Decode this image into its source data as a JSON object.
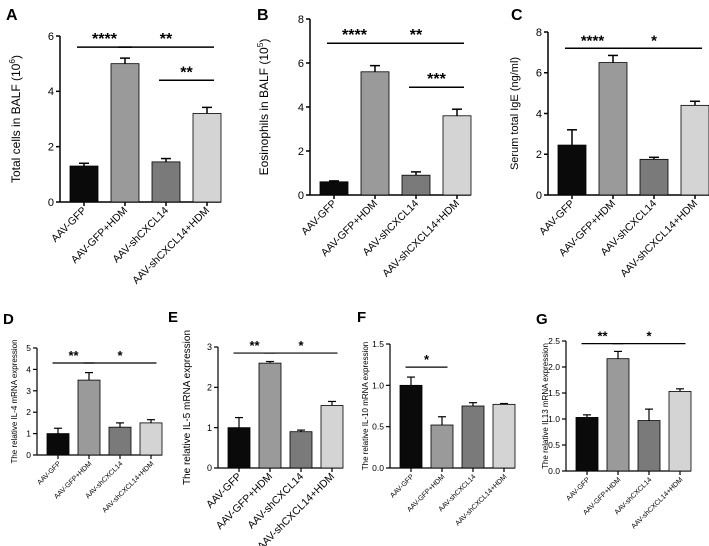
{
  "figure": {
    "categories": [
      "AAV-GFP",
      "AAV-GFP+HDM",
      "AAV-shCXCL14",
      "AAV-shCXCL14+HDM"
    ],
    "colors": {
      "axis": "#000000",
      "error": "#000000",
      "bar_fill": [
        "#0a0a0a",
        "#9a9a9a",
        "#7a7a7a",
        "#d4d4d4"
      ]
    }
  },
  "chart_data": [
    {
      "type": "bar",
      "panel": "A",
      "ylabel": "Total cells in BALF (10",
      "ylabel_sup": "6",
      "ylabel_end": ")",
      "ylim": [
        0,
        6
      ],
      "yticks": [
        0,
        2,
        4,
        6
      ],
      "categories": [
        "AAV-GFP",
        "AAV-GFP+HDM",
        "AAV-shCXCL14",
        "AAV-shCXCL14+HDM"
      ],
      "values": [
        1.3,
        5.0,
        1.45,
        3.2
      ],
      "errors": [
        0.1,
        0.2,
        0.12,
        0.22
      ],
      "significance": [
        {
          "from": 0,
          "to": 1,
          "label": "****",
          "y": 5.6
        },
        {
          "from": 1,
          "to": 3,
          "label": "**",
          "y": 5.6
        },
        {
          "from": 2,
          "to": 3,
          "label": "**",
          "y": 4.4
        }
      ]
    },
    {
      "type": "bar",
      "panel": "B",
      "ylabel": "Eosinophils in BALF (10",
      "ylabel_sup": "5",
      "ylabel_end": ")",
      "ylim": [
        0,
        8
      ],
      "yticks": [
        0,
        2,
        4,
        6,
        8
      ],
      "categories": [
        "AAV-GFP",
        "AAV-GFP+HDM",
        "AAV-shCXCL14",
        "AAV-shCXCL14+HDM"
      ],
      "values": [
        0.6,
        5.6,
        0.9,
        3.6
      ],
      "errors": [
        0.04,
        0.28,
        0.15,
        0.3
      ],
      "significance": [
        {
          "from": 0,
          "to": 1,
          "label": "****",
          "y": 6.9
        },
        {
          "from": 1,
          "to": 3,
          "label": "**",
          "y": 6.9
        },
        {
          "from": 2,
          "to": 3,
          "label": "***",
          "y": 4.9
        }
      ]
    },
    {
      "type": "bar",
      "panel": "C",
      "ylabel": "Serum total IgE (ng/ml)",
      "ylabel_sup": "",
      "ylabel_end": "",
      "ylim": [
        0,
        8
      ],
      "yticks": [
        0,
        2,
        4,
        6,
        8
      ],
      "categories": [
        "AAV-GFP",
        "AAV-GFP+HDM",
        "AAV-shCXCL14",
        "AAV-shCXCL14+HDM"
      ],
      "values": [
        2.45,
        6.5,
        1.75,
        4.4
      ],
      "errors": [
        0.75,
        0.35,
        0.1,
        0.2
      ],
      "significance": [
        {
          "from": 0,
          "to": 1,
          "label": "****",
          "y": 7.2
        },
        {
          "from": 1,
          "to": 3,
          "label": "*",
          "y": 7.2
        }
      ]
    },
    {
      "type": "bar",
      "panel": "D",
      "ylabel": "The relative IL-4 mRNA expression",
      "ylabel_sup": "",
      "ylabel_end": "",
      "ylim": [
        0,
        5
      ],
      "yticks": [
        0,
        1,
        2,
        3,
        4,
        5
      ],
      "categories": [
        "AAV-GFP",
        "AAV-GFP+HDM",
        "AAV-shCXCL14",
        "AAV-shCXCL14+HDM"
      ],
      "values": [
        1.0,
        3.5,
        1.3,
        1.5
      ],
      "errors": [
        0.25,
        0.35,
        0.2,
        0.15
      ],
      "significance": [
        {
          "from": 0,
          "to": 1,
          "label": "**",
          "y": 4.3
        },
        {
          "from": 1,
          "to": 3,
          "label": "*",
          "y": 4.3
        }
      ]
    },
    {
      "type": "bar",
      "panel": "E",
      "ylabel": "The relative IL-5 mRNA expression",
      "ylabel_sup": "",
      "ylabel_end": "",
      "ylim": [
        0,
        3
      ],
      "yticks": [
        0,
        1,
        2,
        3
      ],
      "categories": [
        "AAV-GFP",
        "AAV-GFP+HDM",
        "AAV-shCXCL14",
        "AAV-shCXCL14+HDM"
      ],
      "values": [
        1.0,
        2.6,
        0.9,
        1.55
      ],
      "errors": [
        0.25,
        0.04,
        0.04,
        0.1
      ],
      "significance": [
        {
          "from": 0,
          "to": 1,
          "label": "**",
          "y": 2.85
        },
        {
          "from": 1,
          "to": 3,
          "label": "*",
          "y": 2.85
        }
      ]
    },
    {
      "type": "bar",
      "panel": "F",
      "ylabel": "The relative IL-10 mRNA expression",
      "ylabel_sup": "",
      "ylabel_end": "",
      "ylim": [
        0,
        1.5
      ],
      "yticks": [
        0.0,
        0.5,
        1.0,
        1.5
      ],
      "categories": [
        "AAV-GFP",
        "AAV-GFP+HDM",
        "AAV-shCXCL14",
        "AAV-shCXCL14+HDM"
      ],
      "values": [
        1.0,
        0.52,
        0.75,
        0.77
      ],
      "errors": [
        0.1,
        0.1,
        0.04,
        0.01
      ],
      "significance": [
        {
          "from": 0,
          "to": 1,
          "label": "*",
          "y": 1.22
        }
      ]
    },
    {
      "type": "bar",
      "panel": "G",
      "ylabel": "The relative IL13 mRNA expression",
      "ylabel_sup": "",
      "ylabel_end": "",
      "ylim": [
        0,
        2.5
      ],
      "yticks": [
        0.0,
        0.5,
        1.0,
        1.5,
        2.0,
        2.5
      ],
      "categories": [
        "AAV-GFP",
        "AAV-GFP+HDM",
        "AAV-shCXCL14",
        "AAV-shCXCL14+HDM"
      ],
      "values": [
        1.03,
        2.16,
        0.97,
        1.53
      ],
      "errors": [
        0.05,
        0.14,
        0.22,
        0.05
      ],
      "significance": [
        {
          "from": 0,
          "to": 1,
          "label": "**",
          "y": 2.45
        },
        {
          "from": 1,
          "to": 3,
          "label": "*",
          "y": 2.45
        }
      ]
    }
  ]
}
